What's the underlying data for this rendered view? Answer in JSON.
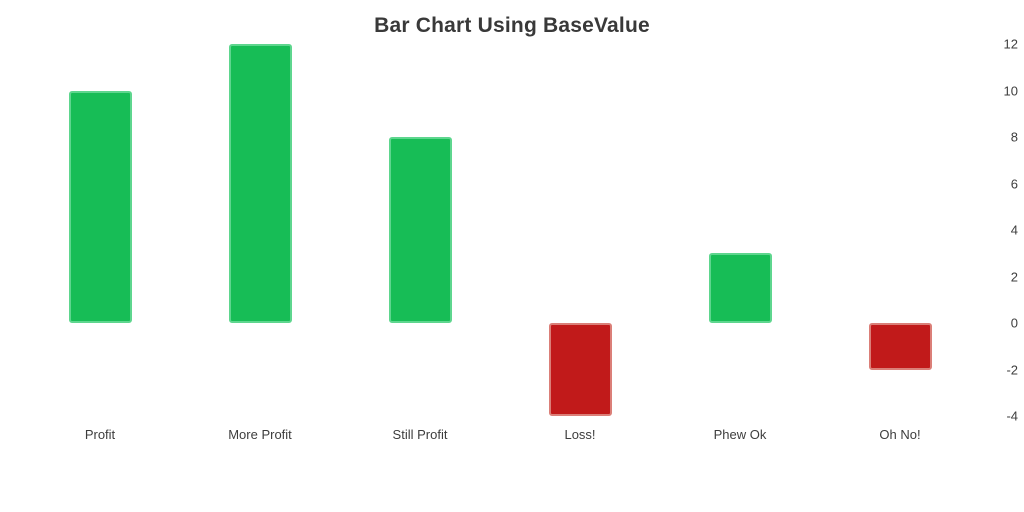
{
  "chart_data": {
    "type": "bar",
    "title": "Bar Chart Using BaseValue",
    "categories": [
      "Profit",
      "More Profit",
      "Still Profit",
      "Loss!",
      "Phew Ok",
      "Oh No!"
    ],
    "values": [
      10,
      12,
      8,
      -4,
      3,
      -2
    ],
    "base_value": 0,
    "xlabel": "",
    "ylabel": "",
    "y_axis": {
      "position": "right",
      "ticks": [
        12,
        10,
        8,
        6,
        4,
        2,
        0,
        -2,
        -4
      ],
      "range": [
        -4,
        12
      ]
    },
    "grid": false,
    "legend": false,
    "colors": {
      "positive": "#17BD56",
      "positive_border": "#5ED68E",
      "negative": "#C11A1A",
      "negative_border": "#DB7F78",
      "title": "#393939",
      "tick": "#3D3D3D",
      "background": "#FFFFFF"
    }
  }
}
